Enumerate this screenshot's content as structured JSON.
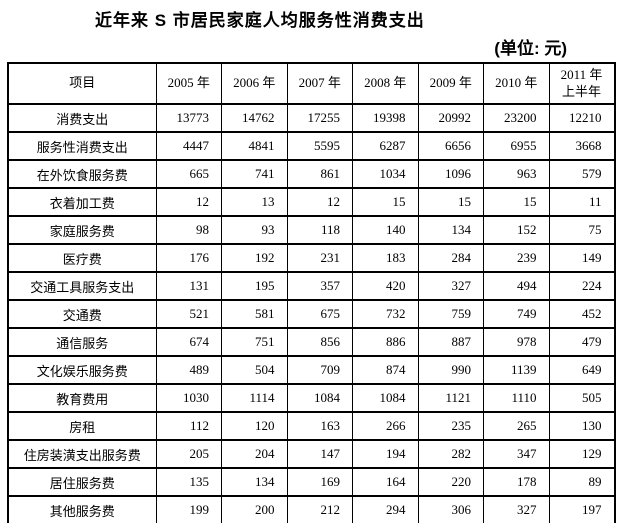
{
  "title": "近年来 S 市居民家庭人均服务性消费支出",
  "unit_label": "(单位: 元)",
  "table": {
    "item_header": "项目",
    "year_headers": [
      "2005 年",
      "2006 年",
      "2007 年",
      "2008 年",
      "2009 年",
      "2010 年",
      "2011 年\n上半年"
    ],
    "rows": [
      {
        "label": "消费支出",
        "values": [
          13773,
          14762,
          17255,
          19398,
          20992,
          23200,
          12210
        ]
      },
      {
        "label": "服务性消费支出",
        "values": [
          4447,
          4841,
          5595,
          6287,
          6656,
          6955,
          3668
        ]
      },
      {
        "label": "在外饮食服务费",
        "values": [
          665,
          741,
          861,
          1034,
          1096,
          963,
          579
        ]
      },
      {
        "label": "衣着加工费",
        "values": [
          12,
          13,
          12,
          15,
          15,
          15,
          11
        ]
      },
      {
        "label": "家庭服务费",
        "values": [
          98,
          93,
          118,
          140,
          134,
          152,
          75
        ]
      },
      {
        "label": "医疗费",
        "values": [
          176,
          192,
          231,
          183,
          284,
          239,
          149
        ]
      },
      {
        "label": "交通工具服务支出",
        "values": [
          131,
          195,
          357,
          420,
          327,
          494,
          224
        ]
      },
      {
        "label": "交通费",
        "values": [
          521,
          581,
          675,
          732,
          759,
          749,
          452
        ]
      },
      {
        "label": "通信服务",
        "values": [
          674,
          751,
          856,
          886,
          887,
          978,
          479
        ]
      },
      {
        "label": "文化娱乐服务费",
        "values": [
          489,
          504,
          709,
          874,
          990,
          1139,
          649
        ]
      },
      {
        "label": "教育费用",
        "values": [
          1030,
          1114,
          1084,
          1084,
          1121,
          1110,
          505
        ]
      },
      {
        "label": "房租",
        "values": [
          112,
          120,
          163,
          266,
          235,
          265,
          130
        ]
      },
      {
        "label": "住房装潢支出服务费",
        "values": [
          205,
          204,
          147,
          194,
          282,
          347,
          129
        ]
      },
      {
        "label": "居住服务费",
        "values": [
          135,
          134,
          169,
          164,
          220,
          178,
          89
        ]
      },
      {
        "label": "其他服务费",
        "values": [
          199,
          200,
          212,
          294,
          306,
          327,
          197
        ]
      }
    ]
  }
}
